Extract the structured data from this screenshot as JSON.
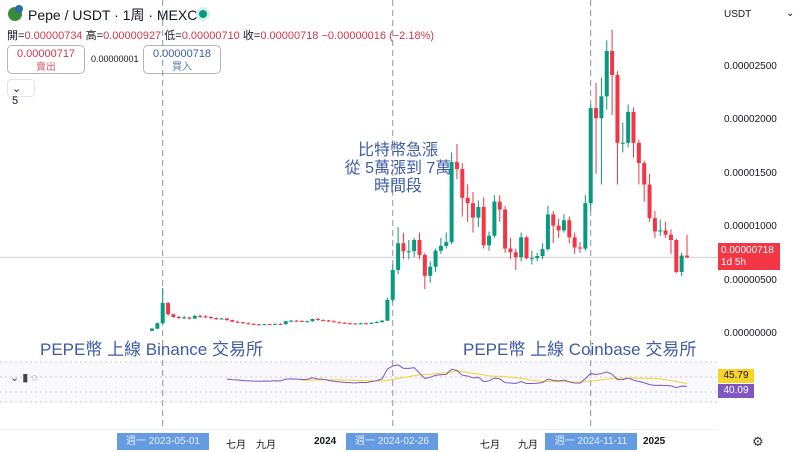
{
  "header": {
    "title": "Pepe / USDT · 1周 · MEXC",
    "ohlc": {
      "open_label": "開=",
      "open": "0.00000734",
      "high_label": "高=",
      "high": "0.00000927",
      "low_label": "低=",
      "low": "0.00000710",
      "close_label": "收=",
      "close": "0.00000718",
      "change": "−0.00000016 (−2.18%)"
    },
    "sell": {
      "price": "0.00000717",
      "label": "賣出"
    },
    "spread": "0.00000001",
    "buy": {
      "price": "0.00000718",
      "label": "買入"
    },
    "indicators_toggle": "⌄ 5"
  },
  "price_axis": {
    "currency": "USDT",
    "ticks": [
      "0.00002500",
      "0.00002000",
      "0.00001500",
      "0.00001000",
      "0.00000500",
      "0.00000000"
    ],
    "current_price": "0.00000718",
    "countdown": "1d 5h",
    "current_color": "#f23645"
  },
  "annotations": {
    "left": "PEPE幣 上線 Binance 交易所",
    "right": "PEPE幣 上線 Coinbase 交易所",
    "center": [
      "比特幣急漲",
      "從 5萬漲到 7萬",
      "時間段"
    ]
  },
  "rsi": {
    "ma_value": "45.79",
    "value": "40.09",
    "ma_color": "#f5d327",
    "value_color": "#7e57c2"
  },
  "time_axis": {
    "labels": [
      "七月",
      "九月",
      "2024",
      "七月",
      "九月",
      "2025"
    ],
    "highlights": [
      "週一 2023-05-01",
      "週一 2024-02-26",
      "週一 2024-11-11"
    ]
  },
  "chart_data": {
    "type": "candlestick",
    "interval": "1周",
    "x_start": "2023-04-17",
    "up_color": "#089981",
    "down_color": "#f23645",
    "ylim": [
      0,
      2.5e-05
    ],
    "markers": [
      "2023-05-01",
      "2024-02-26",
      "2024-11-11"
    ],
    "ohlc": [
      [
        3e-07,
        6e-07,
        2.5e-07,
        5e-07
      ],
      [
        5e-07,
        1.1e-06,
        4.5e-07,
        1e-06
      ],
      [
        1e-06,
        4.3e-06,
        9.5e-07,
        2.9e-06
      ],
      [
        2.9e-06,
        3e-06,
        1.7e-06,
        1.85e-06
      ],
      [
        1.85e-06,
        1.9e-06,
        1.5e-06,
        1.6e-06
      ],
      [
        1.6e-06,
        1.7e-06,
        1.4e-06,
        1.5e-06
      ],
      [
        1.5e-06,
        1.7e-06,
        1.4e-06,
        1.55e-06
      ],
      [
        1.55e-06,
        1.6e-06,
        1.35e-06,
        1.45e-06
      ],
      [
        1.45e-06,
        1.8e-06,
        1.4e-06,
        1.7e-06
      ],
      [
        1.7e-06,
        1.8e-06,
        1.5e-06,
        1.65e-06
      ],
      [
        1.65e-06,
        1.75e-06,
        1.5e-06,
        1.6e-06
      ],
      [
        1.6e-06,
        1.65e-06,
        1.4e-06,
        1.5e-06
      ],
      [
        1.5e-06,
        1.55e-06,
        1.3e-06,
        1.4e-06
      ],
      [
        1.4e-06,
        1.5e-06,
        1.35e-06,
        1.45e-06
      ],
      [
        1.45e-06,
        1.5e-06,
        1.25e-06,
        1.3e-06
      ],
      [
        1.3e-06,
        1.35e-06,
        1.1e-06,
        1.15e-06
      ],
      [
        1.15e-06,
        1.25e-06,
        1.05e-06,
        1.1e-06
      ],
      [
        1.1e-06,
        1.15e-06,
        9.5e-07,
        1e-06
      ],
      [
        1e-06,
        1.1e-06,
        9e-07,
        9.5e-07
      ],
      [
        9.5e-07,
        1e-06,
        8.5e-07,
        9e-07
      ],
      [
        9e-07,
        9.5e-07,
        8.2e-07,
        8.8e-07
      ],
      [
        8.8e-07,
        9.5e-07,
        8.4e-07,
        9.2e-07
      ],
      [
        9.2e-07,
        9.8e-07,
        8.6e-07,
        9e-07
      ],
      [
        9e-07,
        9.8e-07,
        8.6e-07,
        9.5e-07
      ],
      [
        9.5e-07,
        1.02e-06,
        8.8e-07,
        9.2e-07
      ],
      [
        9.2e-07,
        1.25e-06,
        8.8e-07,
        1.2e-06
      ],
      [
        1.2e-06,
        1.3e-06,
        1.1e-06,
        1.25e-06
      ],
      [
        1.25e-06,
        1.3e-06,
        1.15e-06,
        1.22e-06
      ],
      [
        1.22e-06,
        1.28e-06,
        1.12e-06,
        1.18e-06
      ],
      [
        1.18e-06,
        1.25e-06,
        1.08e-06,
        1.2e-06
      ],
      [
        1.2e-06,
        1.45e-06,
        1.15e-06,
        1.4e-06
      ],
      [
        1.4e-06,
        1.5e-06,
        1.25e-06,
        1.3e-06
      ],
      [
        1.3e-06,
        1.38e-06,
        1.2e-06,
        1.28e-06
      ],
      [
        1.28e-06,
        1.32e-06,
        1.12e-06,
        1.18e-06
      ],
      [
        1.18e-06,
        1.28e-06,
        1.08e-06,
        1.1e-06
      ],
      [
        1.1e-06,
        1.18e-06,
        1e-06,
        1.05e-06
      ],
      [
        1.05e-06,
        1.1e-06,
        9.5e-07,
        1e-06
      ],
      [
        1e-06,
        1.05e-06,
        9.2e-07,
        9.8e-07
      ],
      [
        9.8e-07,
        1.02e-06,
        9e-07,
        9.5e-07
      ],
      [
        9.5e-07,
        1.05e-06,
        9e-07,
        1e-06
      ],
      [
        1e-06,
        1.08e-06,
        9.2e-07,
        9.8e-07
      ],
      [
        9.8e-07,
        1.1e-06,
        9.5e-07,
        1.05e-06
      ],
      [
        1.05e-06,
        1.2e-06,
        1e-06,
        1.12e-06
      ],
      [
        1.12e-06,
        1.3e-06,
        1.05e-06,
        1.25e-06
      ],
      [
        1.25e-06,
        3.4e-06,
        1.2e-06,
        3.2e-06
      ],
      [
        3.2e-06,
        6.5e-06,
        3e-06,
        6e-06
      ],
      [
        6e-06,
        1e-05,
        5.6e-06,
        8.5e-06
      ],
      [
        8.5e-06,
        9.5e-06,
        7e-06,
        7.75e-06
      ],
      [
        7.75e-06,
        8.8e-06,
        7e-06,
        7.75e-06
      ],
      [
        7.75e-06,
        9e-06,
        7.2e-06,
        8.8e-06
      ],
      [
        8.8e-06,
        9.5e-06,
        7e-06,
        7.4e-06
      ],
      [
        7.4e-06,
        7.6e-06,
        4.2e-06,
        5.45e-06
      ],
      [
        5.45e-06,
        6.8e-06,
        4.8e-06,
        6.3e-06
      ],
      [
        6.3e-06,
        8e-06,
        5.8e-06,
        7.8e-06
      ],
      [
        7.8e-06,
        9e-06,
        7.5e-06,
        8.25e-06
      ],
      [
        8.25e-06,
        9.5e-06,
        8e-06,
        8.6e-06
      ],
      [
        8.6e-06,
        1.7e-05,
        8.4e-06,
        1.61e-05
      ],
      [
        1.61e-05,
        1.78e-05,
        1.45e-05,
        1.545e-05
      ],
      [
        1.545e-05,
        1.6e-05,
        1.1e-05,
        1.275e-05
      ],
      [
        1.275e-05,
        1.4e-05,
        1.05e-05,
        1.225e-05
      ],
      [
        1.225e-05,
        1.33e-05,
        9.5e-06,
        1.09e-05
      ],
      [
        1.09e-05,
        1.25e-05,
        1e-05,
        1.19e-05
      ],
      [
        1.19e-05,
        1.28e-05,
        8e-06,
        8.3e-06
      ],
      [
        8.3e-06,
        9.6e-06,
        7.8e-06,
        9.2e-06
      ],
      [
        9.2e-06,
        1.3e-05,
        9e-06,
        1.24e-05
      ],
      [
        1.24e-05,
        1.3e-05,
        1.05e-05,
        1.165e-05
      ],
      [
        1.165e-05,
        1.2e-05,
        7.6e-06,
        8e-06
      ],
      [
        8e-06,
        9e-06,
        7e-06,
        7.65e-06
      ],
      [
        7.65e-06,
        8e-06,
        6e-06,
        7.2e-06
      ],
      [
        7.2e-06,
        9.5e-06,
        6.8e-06,
        9.05e-06
      ],
      [
        9.05e-06,
        9.2e-06,
        7e-06,
        7.1e-06
      ],
      [
        7.1e-06,
        7.8e-06,
        6.5e-06,
        7.1e-06
      ],
      [
        7.1e-06,
        7.6e-06,
        6.8e-06,
        7.3e-06
      ],
      [
        7.3e-06,
        8.5e-06,
        7e-06,
        7.95e-06
      ],
      [
        7.95e-06,
        1.2e-05,
        7.8e-06,
        1.12e-05
      ],
      [
        1.12e-05,
        1.15e-05,
        8.5e-06,
        1.015e-05
      ],
      [
        1.015e-05,
        1.08e-05,
        9e-06,
        9.7e-06
      ],
      [
        9.7e-06,
        1.12e-05,
        9.5e-06,
        1.065e-05
      ],
      [
        1.065e-05,
        1.1e-05,
        8.5e-06,
        9.05e-06
      ],
      [
        9.05e-06,
        9.5e-06,
        7.5e-06,
        8.1e-06
      ],
      [
        8.1e-06,
        8.6e-06,
        7.6e-06,
        8e-06
      ],
      [
        8e-06,
        1.3e-05,
        7.8e-06,
        1.225e-05
      ],
      [
        1.225e-05,
        2.15e-05,
        1.15e-05,
        2.115e-05
      ],
      [
        2.115e-05,
        2.35e-05,
        1.5e-05,
        2.02e-05
      ],
      [
        2.02e-05,
        2.4e-05,
        1.4e-05,
        2.225e-05
      ],
      [
        2.225e-05,
        2.75e-05,
        2.1e-05,
        2.65e-05
      ],
      [
        2.65e-05,
        2.85e-05,
        2.05e-05,
        2.425e-05
      ],
      [
        2.425e-05,
        2.46e-05,
        1.4e-05,
        1.79e-05
      ],
      [
        1.79e-05,
        1.98e-05,
        1.7e-05,
        1.79e-05
      ],
      [
        1.79e-05,
        2.15e-05,
        1.75e-05,
        2.08e-05
      ],
      [
        2.08e-05,
        2.12e-05,
        1.65e-05,
        1.79e-05
      ],
      [
        1.79e-05,
        1.82e-05,
        1.4e-05,
        1.6e-05
      ],
      [
        1.6e-05,
        1.62e-05,
        1.24e-05,
        1.4e-05
      ],
      [
        1.4e-05,
        1.5e-05,
        1.05e-05,
        1.085e-05
      ],
      [
        1.085e-05,
        1.15e-05,
        9e-06,
        9.6e-06
      ],
      [
        9.6e-06,
        1.07e-05,
        9.2e-06,
        9.7e-06
      ],
      [
        9.7e-06,
        1.05e-05,
        9e-06,
        9.3e-06
      ],
      [
        9.3e-06,
        9.8e-06,
        7.5e-06,
        8.8e-06
      ],
      [
        8.8e-06,
        8.9e-06,
        5.7e-06,
        5.8e-06
      ],
      [
        5.8e-06,
        7.6e-06,
        5.4e-06,
        7.34e-06
      ],
      [
        7.34e-06,
        9.27e-06,
        7.1e-06,
        7.18e-06
      ]
    ]
  }
}
